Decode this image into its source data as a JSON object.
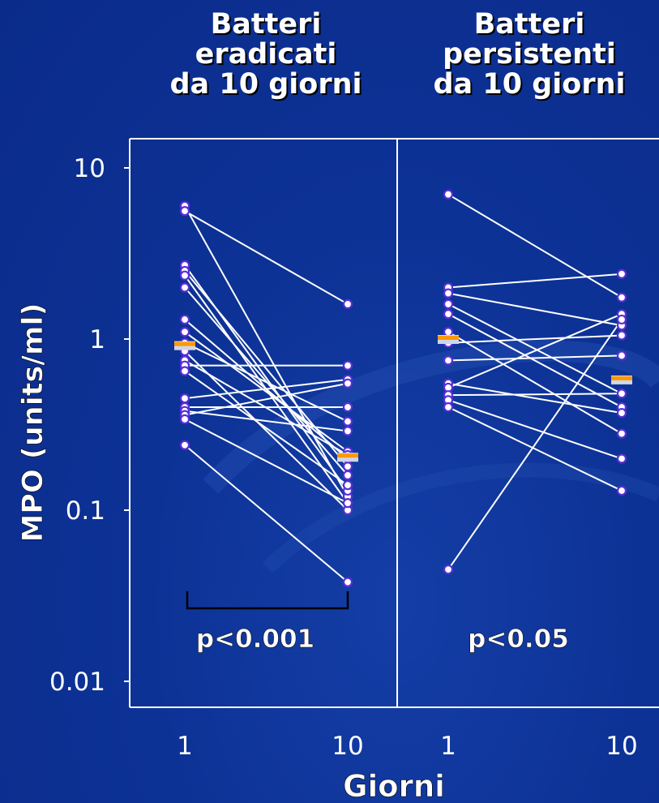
{
  "panels": [
    {
      "title_lines": [
        "Batteri",
        "eradicati",
        "da 10 giorni"
      ],
      "p_value": "p<0.001"
    },
    {
      "title_lines": [
        "Batteri",
        "persistenti",
        "da 10 giorni"
      ],
      "p_value": "p<0.05"
    }
  ],
  "chart_data": {
    "type": "line",
    "ylabel": "MPO (units/ml)",
    "xlabel": "Giorni",
    "yscale": "log",
    "ylim": [
      0.01,
      10
    ],
    "yticks": [
      10,
      1,
      0.1,
      0.01
    ],
    "ytick_labels": [
      "10",
      "1",
      "0.1",
      "0.01"
    ],
    "xtick_labels": [
      "1",
      "10"
    ],
    "colors": {
      "background": "#0c2f93",
      "line": "#ffffff",
      "marker": "#5a2fd6",
      "median": "#ff9900"
    },
    "panels": [
      {
        "name": "Batteri eradicati da 10 giorni",
        "p_value": "p<0.001",
        "significance_bracket": true,
        "pairs": [
          [
            6.0,
            0.12
          ],
          [
            5.6,
            1.6
          ],
          [
            2.7,
            0.13
          ],
          [
            2.5,
            0.18
          ],
          [
            2.35,
            0.11
          ],
          [
            2.0,
            0.16
          ],
          [
            1.3,
            0.2
          ],
          [
            1.1,
            0.22
          ],
          [
            0.95,
            0.33
          ],
          [
            0.85,
            0.1
          ],
          [
            0.75,
            0.21
          ],
          [
            0.7,
            0.7
          ],
          [
            0.65,
            0.14
          ],
          [
            0.45,
            0.58
          ],
          [
            0.4,
            0.4
          ],
          [
            0.38,
            0.29
          ],
          [
            0.36,
            0.55
          ],
          [
            0.34,
            0.11
          ],
          [
            0.24,
            0.038
          ]
        ],
        "median": [
          0.92,
          0.205
        ]
      },
      {
        "name": "Batteri persistenti da 10 giorni",
        "p_value": "p<0.05",
        "significance_bracket": false,
        "pairs": [
          [
            7.0,
            1.75
          ],
          [
            2.0,
            2.4
          ],
          [
            1.85,
            1.2
          ],
          [
            1.6,
            0.48
          ],
          [
            1.4,
            0.4
          ],
          [
            1.1,
            0.28
          ],
          [
            0.95,
            1.05
          ],
          [
            0.75,
            0.8
          ],
          [
            0.55,
            0.37
          ],
          [
            0.52,
            1.4
          ],
          [
            0.47,
            0.48
          ],
          [
            0.44,
            0.2
          ],
          [
            0.4,
            0.13
          ],
          [
            0.045,
            1.3
          ]
        ],
        "median": [
          1.0,
          0.58
        ]
      }
    ]
  }
}
